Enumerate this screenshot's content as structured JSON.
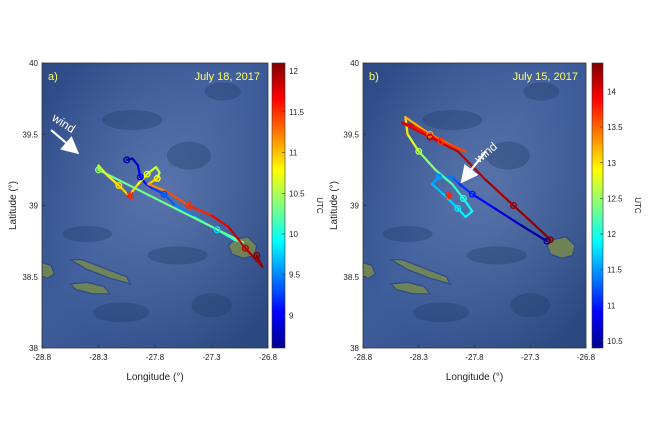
{
  "chart_data": [
    {
      "type": "map-trajectory",
      "panel_label": "a)",
      "date": "July 18, 2017",
      "xlabel": "Longitude (°)",
      "ylabel": "Latitude (°)",
      "xlim": [
        -28.8,
        -26.8
      ],
      "ylim": [
        38,
        40
      ],
      "xticks": [
        -28.8,
        -28.3,
        -27.8,
        -27.3,
        -26.8
      ],
      "yticks": [
        38,
        38.5,
        39,
        39.5,
        40
      ],
      "xtick_labels": [
        "-28.8",
        "-28.3",
        "-27.8",
        "-27.3",
        "-26.8"
      ],
      "ytick_labels": [
        "38",
        "38.5",
        "39",
        "39.5",
        "40"
      ],
      "colorbar": {
        "label": "UTC",
        "range": [
          8.6,
          12.1
        ],
        "ticks": [
          9,
          9.5,
          10,
          10.5,
          11,
          11.5,
          12
        ],
        "tick_labels": [
          "9",
          "9.5",
          "10",
          "10.5",
          "11",
          "11.5",
          "12"
        ]
      },
      "annotation": "wind",
      "wind_arrow": {
        "from": [
          -28.72,
          39.53
        ],
        "to": [
          -28.5,
          39.38
        ]
      },
      "marker": {
        "lon": -28.02,
        "lat": 39.07
      },
      "track": [
        {
          "lon": -28.05,
          "lat": 39.32,
          "t": 8.7
        },
        {
          "lon": -28.0,
          "lat": 39.33,
          "t": 8.8
        },
        {
          "lon": -27.95,
          "lat": 39.28,
          "t": 8.9
        },
        {
          "lon": -27.93,
          "lat": 39.2,
          "t": 9.0
        },
        {
          "lon": -27.88,
          "lat": 39.15,
          "t": 9.1
        },
        {
          "lon": -27.82,
          "lat": 39.12,
          "t": 9.2
        },
        {
          "lon": -27.72,
          "lat": 39.08,
          "t": 9.3
        },
        {
          "lon": -27.62,
          "lat": 39.0,
          "t": 9.4
        },
        {
          "lon": -27.45,
          "lat": 38.92,
          "t": 9.6
        },
        {
          "lon": -27.25,
          "lat": 38.83,
          "t": 9.8
        },
        {
          "lon": -27.1,
          "lat": 38.76,
          "t": 10.0
        },
        {
          "lon": -27.02,
          "lat": 38.74,
          "t": 10.2
        },
        {
          "lon": -28.3,
          "lat": 39.25,
          "t": 10.4
        },
        {
          "lon": -28.3,
          "lat": 39.28,
          "t": 10.6
        },
        {
          "lon": -28.22,
          "lat": 39.21,
          "t": 10.8
        },
        {
          "lon": -28.12,
          "lat": 39.14,
          "t": 10.9
        },
        {
          "lon": -28.03,
          "lat": 39.07,
          "t": 11.0
        },
        {
          "lon": -27.95,
          "lat": 39.15,
          "t": 10.8
        },
        {
          "lon": -27.87,
          "lat": 39.22,
          "t": 10.7
        },
        {
          "lon": -27.79,
          "lat": 39.27,
          "t": 10.6
        },
        {
          "lon": -27.76,
          "lat": 39.23,
          "t": 10.5
        },
        {
          "lon": -27.78,
          "lat": 39.19,
          "t": 10.8
        },
        {
          "lon": -27.86,
          "lat": 39.15,
          "t": 11.1
        },
        {
          "lon": -27.7,
          "lat": 39.1,
          "t": 11.3
        },
        {
          "lon": -27.5,
          "lat": 39.0,
          "t": 11.5
        },
        {
          "lon": -27.3,
          "lat": 38.93,
          "t": 11.6
        },
        {
          "lon": -27.15,
          "lat": 38.85,
          "t": 11.8
        },
        {
          "lon": -27.0,
          "lat": 38.7,
          "t": 11.9
        },
        {
          "lon": -26.85,
          "lat": 38.57,
          "t": 12.0
        },
        {
          "lon": -26.9,
          "lat": 38.65,
          "t": 12.1
        }
      ]
    },
    {
      "type": "map-trajectory",
      "panel_label": "b)",
      "date": "July 15, 2017",
      "xlabel": "Longitude (°)",
      "ylabel": "Latitude (°)",
      "xlim": [
        -28.8,
        -26.8
      ],
      "ylim": [
        38,
        40
      ],
      "xticks": [
        -28.8,
        -28.3,
        -27.8,
        -27.3,
        -26.8
      ],
      "yticks": [
        38,
        38.5,
        39,
        39.5,
        40
      ],
      "xtick_labels": [
        "-28.8",
        "-28.3",
        "-27.8",
        "-27.3",
        "-26.8"
      ],
      "ytick_labels": [
        "38",
        "38.5",
        "39",
        "39.5",
        "40"
      ],
      "colorbar": {
        "label": "UTC",
        "range": [
          10.4,
          14.4
        ],
        "ticks": [
          10.5,
          11,
          11.5,
          12,
          12.5,
          13,
          13.5,
          14
        ],
        "tick_labels": [
          "10.5",
          "11",
          "11.5",
          "12",
          "12.5",
          "13",
          "13.5",
          "14"
        ]
      },
      "annotation": "wind",
      "wind_arrow": {
        "from": [
          -27.7,
          39.38
        ],
        "to": [
          -27.9,
          39.18
        ]
      },
      "marker": {
        "lon": -28.03,
        "lat": 39.07
      },
      "track": [
        {
          "lon": -27.15,
          "lat": 38.75,
          "t": 10.45
        },
        {
          "lon": -27.4,
          "lat": 38.87,
          "t": 10.6
        },
        {
          "lon": -27.62,
          "lat": 38.98,
          "t": 10.8
        },
        {
          "lon": -27.82,
          "lat": 39.08,
          "t": 11.0
        },
        {
          "lon": -27.95,
          "lat": 39.16,
          "t": 11.2
        },
        {
          "lon": -28.0,
          "lat": 39.2,
          "t": 11.3
        },
        {
          "lon": -28.12,
          "lat": 39.2,
          "t": 11.5
        },
        {
          "lon": -28.18,
          "lat": 39.15,
          "t": 11.6
        },
        {
          "lon": -28.08,
          "lat": 39.08,
          "t": 11.7
        },
        {
          "lon": -27.95,
          "lat": 38.98,
          "t": 11.8
        },
        {
          "lon": -27.88,
          "lat": 38.92,
          "t": 11.9
        },
        {
          "lon": -27.82,
          "lat": 38.96,
          "t": 11.9
        },
        {
          "lon": -27.9,
          "lat": 39.05,
          "t": 12.0
        },
        {
          "lon": -28.0,
          "lat": 39.15,
          "t": 12.1
        },
        {
          "lon": -28.15,
          "lat": 39.25,
          "t": 12.3
        },
        {
          "lon": -28.3,
          "lat": 39.38,
          "t": 12.6
        },
        {
          "lon": -28.4,
          "lat": 39.5,
          "t": 12.9
        },
        {
          "lon": -28.42,
          "lat": 39.62,
          "t": 13.1
        },
        {
          "lon": -28.2,
          "lat": 39.5,
          "t": 13.3
        },
        {
          "lon": -28.0,
          "lat": 39.42,
          "t": 13.5
        },
        {
          "lon": -27.88,
          "lat": 39.38,
          "t": 13.6
        },
        {
          "lon": -28.1,
          "lat": 39.45,
          "t": 13.7
        },
        {
          "lon": -28.35,
          "lat": 39.56,
          "t": 13.9
        },
        {
          "lon": -28.45,
          "lat": 39.58,
          "t": 14.0
        },
        {
          "lon": -28.2,
          "lat": 39.48,
          "t": 14.1
        },
        {
          "lon": -27.95,
          "lat": 39.38,
          "t": 14.15
        },
        {
          "lon": -27.7,
          "lat": 39.18,
          "t": 14.2
        },
        {
          "lon": -27.45,
          "lat": 39.0,
          "t": 14.3
        },
        {
          "lon": -27.2,
          "lat": 38.82,
          "t": 14.35
        },
        {
          "lon": -27.12,
          "lat": 38.76,
          "t": 14.4
        }
      ]
    }
  ]
}
